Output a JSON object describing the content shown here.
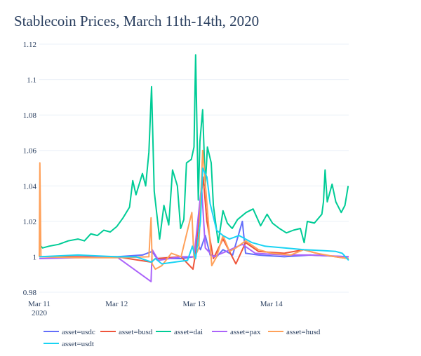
{
  "chart_data": {
    "type": "line",
    "title": "Stablecoin Prices, March 11th-14th, 2020",
    "xlabel": "",
    "ylabel": "",
    "xlim": [
      "2020-03-11 00:00",
      "2020-03-15 00:00"
    ],
    "ylim": [
      0.98,
      1.12
    ],
    "y_ticks": [
      "1.12",
      "1.1",
      "1.08",
      "1.06",
      "1.04",
      "1.02",
      "1",
      "0.98"
    ],
    "x_ticks": [
      {
        "t": "2020-03-11 00:00",
        "label": "Mar 11",
        "sub": "2020"
      },
      {
        "t": "2020-03-12 00:00",
        "label": "Mar 12",
        "sub": ""
      },
      {
        "t": "2020-03-13 00:00",
        "label": "Mar 13",
        "sub": ""
      },
      {
        "t": "2020-03-14 00:00",
        "label": "Mar 14",
        "sub": ""
      }
    ],
    "grid": true,
    "legend_position": "bottom",
    "series": [
      {
        "name": "asset=usdc",
        "color": "#636efa",
        "points": [
          [
            "2020-03-11 00:00",
            1.0
          ],
          [
            "2020-03-12 00:00",
            1.0
          ],
          [
            "2020-03-12 08:00",
            1.001
          ],
          [
            "2020-03-12 11:00",
            1.003
          ],
          [
            "2020-03-12 12:30",
            0.999
          ],
          [
            "2020-03-12 20:00",
            0.999
          ],
          [
            "2020-03-13 00:00",
            1.0
          ],
          [
            "2020-03-13 01:00",
            1.008
          ],
          [
            "2020-03-13 02:00",
            1.004
          ],
          [
            "2020-03-13 03:30",
            1.012
          ],
          [
            "2020-03-13 05:00",
            1.001
          ],
          [
            "2020-03-13 07:00",
            1.0
          ],
          [
            "2020-03-13 09:00",
            1.004
          ],
          [
            "2020-03-13 12:00",
            1.001
          ],
          [
            "2020-03-13 15:00",
            1.02
          ],
          [
            "2020-03-13 16:00",
            1.002
          ],
          [
            "2020-03-13 20:00",
            1.001
          ],
          [
            "2020-03-14 04:00",
            1.0
          ],
          [
            "2020-03-14 12:00",
            1.001
          ],
          [
            "2020-03-14 23:59",
            1.0
          ]
        ]
      },
      {
        "name": "asset=busd",
        "color": "#EF553B",
        "points": [
          [
            "2020-03-11 00:00",
            1.0
          ],
          [
            "2020-03-12 00:00",
            1.0
          ],
          [
            "2020-03-12 10:40",
            0.997
          ],
          [
            "2020-03-12 12:00",
            0.999
          ],
          [
            "2020-03-12 20:00",
            1.0
          ],
          [
            "2020-03-12 23:40",
            0.993
          ],
          [
            "2020-03-13 00:20",
            1.0
          ],
          [
            "2020-03-13 02:50",
            1.045
          ],
          [
            "2020-03-13 04:00",
            1.02
          ],
          [
            "2020-03-13 06:00",
            0.999
          ],
          [
            "2020-03-13 09:00",
            1.01
          ],
          [
            "2020-03-13 11:00",
            1.003
          ],
          [
            "2020-03-13 13:00",
            0.996
          ],
          [
            "2020-03-13 16:00",
            1.008
          ],
          [
            "2020-03-13 20:00",
            1.003
          ],
          [
            "2020-03-14 04:00",
            1.002
          ],
          [
            "2020-03-14 10:00",
            1.004
          ],
          [
            "2020-03-14 16:00",
            1.001
          ],
          [
            "2020-03-14 23:59",
            0.999
          ]
        ]
      },
      {
        "name": "asset=dai",
        "color": "#00cc96",
        "points": [
          [
            "2020-03-11 00:00",
            1.007
          ],
          [
            "2020-03-11 01:00",
            1.005
          ],
          [
            "2020-03-11 03:00",
            1.006
          ],
          [
            "2020-03-11 06:00",
            1.007
          ],
          [
            "2020-03-11 09:00",
            1.009
          ],
          [
            "2020-03-11 12:00",
            1.01
          ],
          [
            "2020-03-11 14:00",
            1.009
          ],
          [
            "2020-03-11 16:00",
            1.013
          ],
          [
            "2020-03-11 18:00",
            1.012
          ],
          [
            "2020-03-11 20:00",
            1.015
          ],
          [
            "2020-03-11 22:00",
            1.014
          ],
          [
            "2020-03-12 00:00",
            1.017
          ],
          [
            "2020-03-12 02:00",
            1.022
          ],
          [
            "2020-03-12 04:00",
            1.028
          ],
          [
            "2020-03-12 05:00",
            1.043
          ],
          [
            "2020-03-12 06:00",
            1.035
          ],
          [
            "2020-03-12 08:00",
            1.047
          ],
          [
            "2020-03-12 09:00",
            1.04
          ],
          [
            "2020-03-12 10:00",
            1.059
          ],
          [
            "2020-03-12 10:50",
            1.096
          ],
          [
            "2020-03-12 11:40",
            1.037
          ],
          [
            "2020-03-12 13:20",
            1.01
          ],
          [
            "2020-03-12 14:40",
            1.029
          ],
          [
            "2020-03-12 16:10",
            1.018
          ],
          [
            "2020-03-12 17:20",
            1.049
          ],
          [
            "2020-03-12 18:50",
            1.04
          ],
          [
            "2020-03-12 19:50",
            1.016
          ],
          [
            "2020-03-12 20:50",
            1.021
          ],
          [
            "2020-03-12 21:40",
            1.053
          ],
          [
            "2020-03-12 23:10",
            1.055
          ],
          [
            "2020-03-13 00:00",
            1.062
          ],
          [
            "2020-03-13 00:30",
            1.114
          ],
          [
            "2020-03-13 01:20",
            1.032
          ],
          [
            "2020-03-13 01:50",
            1.065
          ],
          [
            "2020-03-13 02:40",
            1.083
          ],
          [
            "2020-03-13 03:30",
            1.04
          ],
          [
            "2020-03-13 04:10",
            1.062
          ],
          [
            "2020-03-13 05:20",
            1.053
          ],
          [
            "2020-03-13 06:00",
            1.029
          ],
          [
            "2020-03-13 07:30",
            1.008
          ],
          [
            "2020-03-13 09:00",
            1.026
          ],
          [
            "2020-03-13 10:20",
            1.019
          ],
          [
            "2020-03-13 11:50",
            1.016
          ],
          [
            "2020-03-13 13:30",
            1.021
          ],
          [
            "2020-03-13 16:10",
            1.025
          ],
          [
            "2020-03-13 18:20",
            1.027
          ],
          [
            "2020-03-13 20:40",
            1.0175
          ],
          [
            "2020-03-13 22:40",
            1.024
          ],
          [
            "2020-03-14 00:20",
            1.019
          ],
          [
            "2020-03-14 02:30",
            1.016
          ],
          [
            "2020-03-14 04:40",
            1.0135
          ],
          [
            "2020-03-14 06:50",
            1.015
          ],
          [
            "2020-03-14 09:00",
            1.016
          ],
          [
            "2020-03-14 10:10",
            1.008
          ],
          [
            "2020-03-14 11:10",
            1.02
          ],
          [
            "2020-03-14 13:20",
            1.019
          ],
          [
            "2020-03-14 15:40",
            1.024
          ],
          [
            "2020-03-14 16:10",
            1.031
          ],
          [
            "2020-03-14 16:40",
            1.049
          ],
          [
            "2020-03-14 17:20",
            1.031
          ],
          [
            "2020-03-14 18:50",
            1.041
          ],
          [
            "2020-03-14 20:00",
            1.031
          ],
          [
            "2020-03-14 21:40",
            1.025
          ],
          [
            "2020-03-14 22:50",
            1.029
          ],
          [
            "2020-03-14 23:50",
            1.04
          ]
        ]
      },
      {
        "name": "asset=pax",
        "color": "#ab63fa",
        "points": [
          [
            "2020-03-11 00:00",
            0.999
          ],
          [
            "2020-03-12 00:00",
            1.0
          ],
          [
            "2020-03-12 10:40",
            0.986
          ],
          [
            "2020-03-12 11:00",
            1.004
          ],
          [
            "2020-03-12 13:00",
            0.998
          ],
          [
            "2020-03-12 20:00",
            1.0
          ],
          [
            "2020-03-13 00:00",
            1.0
          ],
          [
            "2020-03-13 02:20",
            1.04
          ],
          [
            "2020-03-13 03:30",
            1.005
          ],
          [
            "2020-03-13 06:00",
            1.0
          ],
          [
            "2020-03-13 10:00",
            1.003
          ],
          [
            "2020-03-13 15:00",
            1.007
          ],
          [
            "2020-03-13 19:00",
            1.002
          ],
          [
            "2020-03-14 04:00",
            1.001
          ],
          [
            "2020-03-14 12:00",
            1.001
          ],
          [
            "2020-03-14 23:59",
            1.0
          ]
        ]
      },
      {
        "name": "asset=husd",
        "color": "#FFA15A",
        "points": [
          [
            "2020-03-11 00:00",
            1.0
          ],
          [
            "2020-03-11 00:10",
            1.053
          ],
          [
            "2020-03-11 00:30",
            1.0
          ],
          [
            "2020-03-11 12:00",
            0.9995
          ],
          [
            "2020-03-12 00:00",
            0.9995
          ],
          [
            "2020-03-12 10:00",
            1.0
          ],
          [
            "2020-03-12 10:40",
            1.022
          ],
          [
            "2020-03-12 11:00",
            0.996
          ],
          [
            "2020-03-12 12:00",
            0.993
          ],
          [
            "2020-03-12 14:00",
            0.995
          ],
          [
            "2020-03-12 17:00",
            1.002
          ],
          [
            "2020-03-12 20:00",
            1.0
          ],
          [
            "2020-03-12 23:20",
            1.025
          ],
          [
            "2020-03-13 00:00",
            0.999
          ],
          [
            "2020-03-13 01:30",
            1.005
          ],
          [
            "2020-03-13 02:40",
            1.06
          ],
          [
            "2020-03-13 04:00",
            1.03
          ],
          [
            "2020-03-13 05:30",
            0.995
          ],
          [
            "2020-03-13 07:00",
            1.0
          ],
          [
            "2020-03-13 09:00",
            1.012
          ],
          [
            "2020-03-13 11:00",
            1.003
          ],
          [
            "2020-03-13 13:00",
            1.005
          ],
          [
            "2020-03-13 16:00",
            1.009
          ],
          [
            "2020-03-13 20:00",
            1.004
          ],
          [
            "2020-03-14 00:00",
            1.002
          ],
          [
            "2020-03-14 06:00",
            1.001
          ],
          [
            "2020-03-14 10:00",
            1.004
          ],
          [
            "2020-03-14 14:00",
            1.002
          ],
          [
            "2020-03-14 20:00",
            1.0
          ],
          [
            "2020-03-14 23:59",
            0.999
          ]
        ]
      },
      {
        "name": "asset=usdt",
        "color": "#19d3f3",
        "points": [
          [
            "2020-03-11 00:00",
            1.0
          ],
          [
            "2020-03-11 12:00",
            1.001
          ],
          [
            "2020-03-12 00:00",
            1.0
          ],
          [
            "2020-03-12 06:00",
            1.0
          ],
          [
            "2020-03-12 10:50",
            0.997
          ],
          [
            "2020-03-12 12:00",
            0.999
          ],
          [
            "2020-03-12 14:00",
            0.996
          ],
          [
            "2020-03-12 18:00",
            0.997
          ],
          [
            "2020-03-12 22:00",
            0.998
          ],
          [
            "2020-03-12 23:30",
            1.006
          ],
          [
            "2020-03-13 00:30",
            0.999
          ],
          [
            "2020-03-13 02:00",
            1.02
          ],
          [
            "2020-03-13 02:40",
            1.05
          ],
          [
            "2020-03-13 04:00",
            1.045
          ],
          [
            "2020-03-13 05:00",
            1.03
          ],
          [
            "2020-03-13 07:00",
            1.015
          ],
          [
            "2020-03-13 09:00",
            1.012
          ],
          [
            "2020-03-13 11:00",
            1.01
          ],
          [
            "2020-03-13 14:00",
            1.012
          ],
          [
            "2020-03-13 18:00",
            1.008
          ],
          [
            "2020-03-13 22:00",
            1.006
          ],
          [
            "2020-03-14 04:00",
            1.005
          ],
          [
            "2020-03-14 10:00",
            1.004
          ],
          [
            "2020-03-14 16:00",
            1.0035
          ],
          [
            "2020-03-14 20:00",
            1.003
          ],
          [
            "2020-03-14 22:00",
            1.002
          ],
          [
            "2020-03-14 23:59",
            0.998
          ]
        ]
      }
    ]
  }
}
